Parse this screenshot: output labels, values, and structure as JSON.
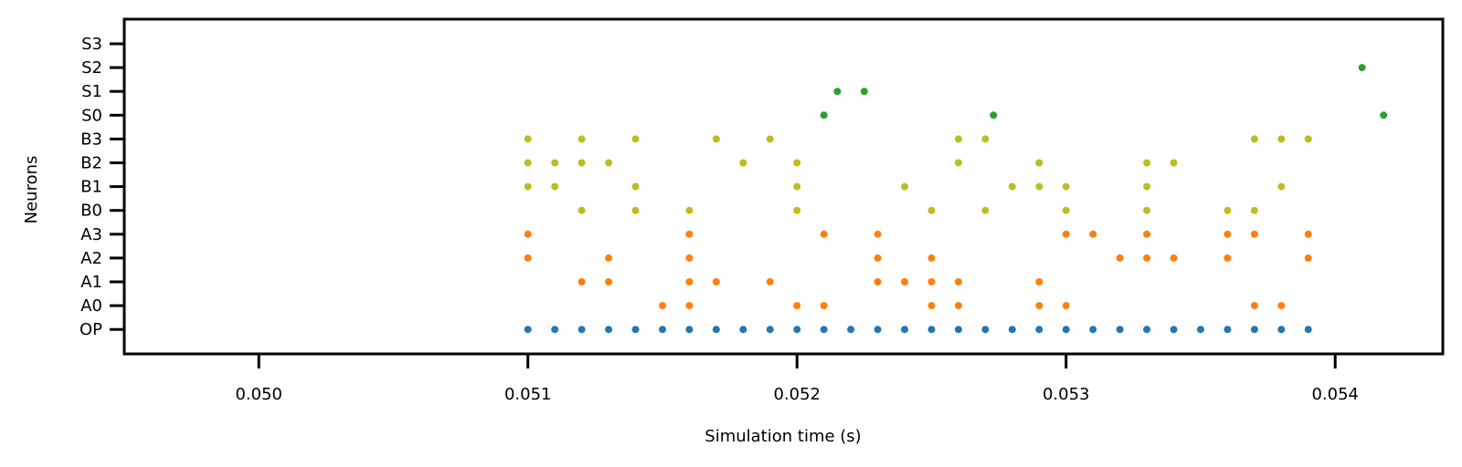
{
  "chart_data": {
    "type": "scatter",
    "title": "",
    "xlabel": "Simulation time (s)",
    "ylabel": "Neurons",
    "xlim": [
      0.0495,
      0.0544
    ],
    "x_ticks": [
      0.05,
      0.051,
      0.052,
      0.053,
      0.054
    ],
    "x_tick_labels": [
      "0.050",
      "0.051",
      "0.052",
      "0.053",
      "0.054"
    ],
    "y_categories": [
      "OP",
      "A0",
      "A1",
      "A2",
      "A3",
      "B0",
      "B1",
      "B2",
      "B3",
      "S0",
      "S1",
      "S2",
      "S3"
    ],
    "grid": false,
    "legend": "none",
    "series": [
      {
        "color": "#1f77b4",
        "points": [
          {
            "x": 0.051,
            "y": "OP"
          },
          {
            "x": 0.0511,
            "y": "OP"
          },
          {
            "x": 0.0512,
            "y": "OP"
          },
          {
            "x": 0.0513,
            "y": "OP"
          },
          {
            "x": 0.0514,
            "y": "OP"
          },
          {
            "x": 0.0515,
            "y": "OP"
          },
          {
            "x": 0.0516,
            "y": "OP"
          },
          {
            "x": 0.0517,
            "y": "OP"
          },
          {
            "x": 0.0518,
            "y": "OP"
          },
          {
            "x": 0.0519,
            "y": "OP"
          },
          {
            "x": 0.052,
            "y": "OP"
          },
          {
            "x": 0.0521,
            "y": "OP"
          },
          {
            "x": 0.0522,
            "y": "OP"
          },
          {
            "x": 0.0523,
            "y": "OP"
          },
          {
            "x": 0.0524,
            "y": "OP"
          },
          {
            "x": 0.0525,
            "y": "OP"
          },
          {
            "x": 0.0526,
            "y": "OP"
          },
          {
            "x": 0.0527,
            "y": "OP"
          },
          {
            "x": 0.0528,
            "y": "OP"
          },
          {
            "x": 0.0529,
            "y": "OP"
          },
          {
            "x": 0.053,
            "y": "OP"
          },
          {
            "x": 0.0531,
            "y": "OP"
          },
          {
            "x": 0.0532,
            "y": "OP"
          },
          {
            "x": 0.0533,
            "y": "OP"
          },
          {
            "x": 0.0534,
            "y": "OP"
          },
          {
            "x": 0.0535,
            "y": "OP"
          },
          {
            "x": 0.0536,
            "y": "OP"
          },
          {
            "x": 0.0537,
            "y": "OP"
          },
          {
            "x": 0.0538,
            "y": "OP"
          },
          {
            "x": 0.0539,
            "y": "OP"
          }
        ]
      },
      {
        "color": "#ff7f0e",
        "points": [
          {
            "x": 0.0515,
            "y": "A0"
          },
          {
            "x": 0.0516,
            "y": "A0"
          },
          {
            "x": 0.052,
            "y": "A0"
          },
          {
            "x": 0.0521,
            "y": "A0"
          },
          {
            "x": 0.0525,
            "y": "A0"
          },
          {
            "x": 0.0526,
            "y": "A0"
          },
          {
            "x": 0.0529,
            "y": "A0"
          },
          {
            "x": 0.053,
            "y": "A0"
          },
          {
            "x": 0.0537,
            "y": "A0"
          },
          {
            "x": 0.0538,
            "y": "A0"
          },
          {
            "x": 0.0512,
            "y": "A1"
          },
          {
            "x": 0.0513,
            "y": "A1"
          },
          {
            "x": 0.0516,
            "y": "A1"
          },
          {
            "x": 0.0517,
            "y": "A1"
          },
          {
            "x": 0.0519,
            "y": "A1"
          },
          {
            "x": 0.0523,
            "y": "A1"
          },
          {
            "x": 0.0524,
            "y": "A1"
          },
          {
            "x": 0.0525,
            "y": "A1"
          },
          {
            "x": 0.0526,
            "y": "A1"
          },
          {
            "x": 0.0529,
            "y": "A1"
          },
          {
            "x": 0.051,
            "y": "A2"
          },
          {
            "x": 0.0513,
            "y": "A2"
          },
          {
            "x": 0.0516,
            "y": "A2"
          },
          {
            "x": 0.0523,
            "y": "A2"
          },
          {
            "x": 0.0525,
            "y": "A2"
          },
          {
            "x": 0.0532,
            "y": "A2"
          },
          {
            "x": 0.0533,
            "y": "A2"
          },
          {
            "x": 0.0534,
            "y": "A2"
          },
          {
            "x": 0.0536,
            "y": "A2"
          },
          {
            "x": 0.0539,
            "y": "A2"
          },
          {
            "x": 0.051,
            "y": "A3"
          },
          {
            "x": 0.0516,
            "y": "A3"
          },
          {
            "x": 0.0521,
            "y": "A3"
          },
          {
            "x": 0.0523,
            "y": "A3"
          },
          {
            "x": 0.053,
            "y": "A3"
          },
          {
            "x": 0.0531,
            "y": "A3"
          },
          {
            "x": 0.0533,
            "y": "A3"
          },
          {
            "x": 0.0536,
            "y": "A3"
          },
          {
            "x": 0.0537,
            "y": "A3"
          },
          {
            "x": 0.0539,
            "y": "A3"
          }
        ]
      },
      {
        "color": "#bcbd22",
        "points": [
          {
            "x": 0.0512,
            "y": "B0"
          },
          {
            "x": 0.0514,
            "y": "B0"
          },
          {
            "x": 0.0516,
            "y": "B0"
          },
          {
            "x": 0.052,
            "y": "B0"
          },
          {
            "x": 0.0525,
            "y": "B0"
          },
          {
            "x": 0.0527,
            "y": "B0"
          },
          {
            "x": 0.053,
            "y": "B0"
          },
          {
            "x": 0.0533,
            "y": "B0"
          },
          {
            "x": 0.0536,
            "y": "B0"
          },
          {
            "x": 0.0537,
            "y": "B0"
          },
          {
            "x": 0.051,
            "y": "B1"
          },
          {
            "x": 0.0511,
            "y": "B1"
          },
          {
            "x": 0.0514,
            "y": "B1"
          },
          {
            "x": 0.052,
            "y": "B1"
          },
          {
            "x": 0.0524,
            "y": "B1"
          },
          {
            "x": 0.0528,
            "y": "B1"
          },
          {
            "x": 0.0529,
            "y": "B1"
          },
          {
            "x": 0.053,
            "y": "B1"
          },
          {
            "x": 0.0533,
            "y": "B1"
          },
          {
            "x": 0.0538,
            "y": "B1"
          },
          {
            "x": 0.051,
            "y": "B2"
          },
          {
            "x": 0.0511,
            "y": "B2"
          },
          {
            "x": 0.0512,
            "y": "B2"
          },
          {
            "x": 0.0513,
            "y": "B2"
          },
          {
            "x": 0.0518,
            "y": "B2"
          },
          {
            "x": 0.052,
            "y": "B2"
          },
          {
            "x": 0.0526,
            "y": "B2"
          },
          {
            "x": 0.0529,
            "y": "B2"
          },
          {
            "x": 0.0533,
            "y": "B2"
          },
          {
            "x": 0.0534,
            "y": "B2"
          },
          {
            "x": 0.051,
            "y": "B3"
          },
          {
            "x": 0.0512,
            "y": "B3"
          },
          {
            "x": 0.0514,
            "y": "B3"
          },
          {
            "x": 0.0517,
            "y": "B3"
          },
          {
            "x": 0.0519,
            "y": "B3"
          },
          {
            "x": 0.0526,
            "y": "B3"
          },
          {
            "x": 0.0527,
            "y": "B3"
          },
          {
            "x": 0.0537,
            "y": "B3"
          },
          {
            "x": 0.0538,
            "y": "B3"
          },
          {
            "x": 0.0539,
            "y": "B3"
          }
        ]
      },
      {
        "color": "#2ca02c",
        "points": [
          {
            "x": 0.0521,
            "y": "S0"
          },
          {
            "x": 0.05273,
            "y": "S0"
          },
          {
            "x": 0.05418,
            "y": "S0"
          },
          {
            "x": 0.05215,
            "y": "S1"
          },
          {
            "x": 0.05225,
            "y": "S1"
          },
          {
            "x": 0.0541,
            "y": "S2"
          }
        ]
      }
    ]
  }
}
